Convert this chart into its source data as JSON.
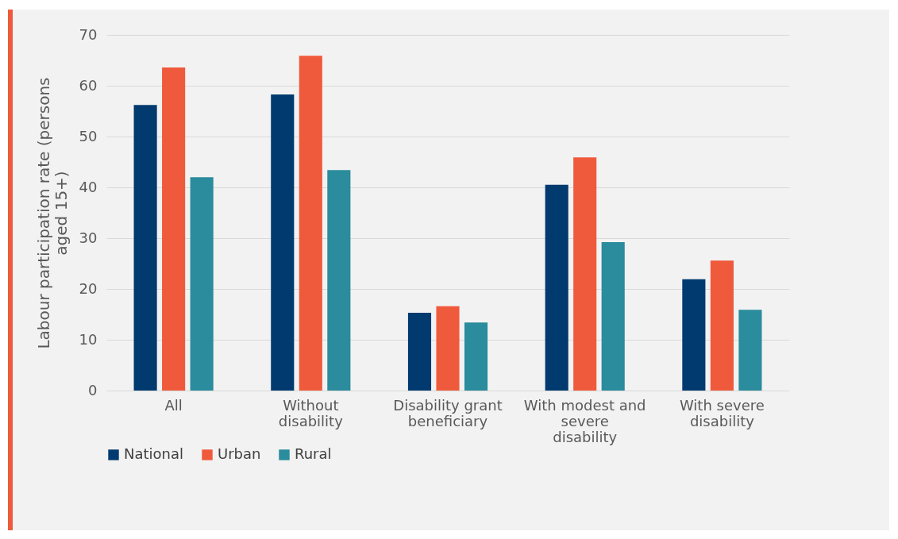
{
  "chart_data": {
    "type": "bar",
    "ylabel": "Labour participation rate (persons aged 15+)",
    "categories": [
      "All",
      "Without disability",
      "Disability grant beneficiary",
      "With modest and severe disability",
      "With severe disability"
    ],
    "series": [
      {
        "name": "National",
        "color": "#003a6e",
        "values": [
          56.2,
          58.3,
          15.3,
          40.5,
          21.9
        ]
      },
      {
        "name": "Urban",
        "color": "#f05a3c",
        "values": [
          63.6,
          65.9,
          16.6,
          45.9,
          25.6
        ]
      },
      {
        "name": "Rural",
        "color": "#2a8c9c",
        "values": [
          42.0,
          43.4,
          13.4,
          29.2,
          15.9
        ]
      }
    ],
    "ylim": [
      0,
      70
    ],
    "yticks": [
      0,
      10,
      20,
      30,
      40,
      50,
      60,
      70
    ],
    "grid": "y",
    "legend": "bottom"
  }
}
